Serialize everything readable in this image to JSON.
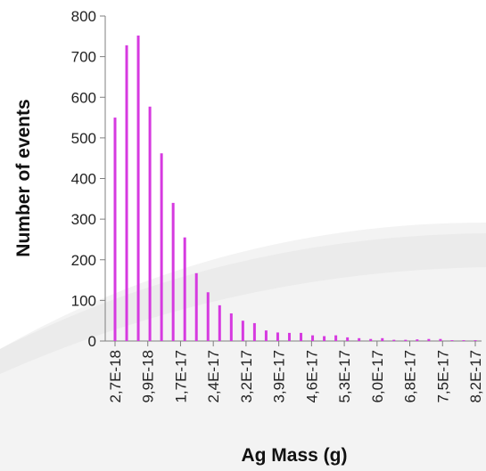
{
  "chart_data": {
    "type": "bar",
    "title": "",
    "xlabel": "Ag Mass (g)",
    "ylabel": "Number of events",
    "ylim": [
      0,
      800
    ],
    "yticks": [
      0,
      100,
      200,
      300,
      400,
      500,
      600,
      700,
      800
    ],
    "xtick_labels": [
      "2,7E-18",
      "9,9E-18",
      "1,7E-17",
      "2,4E-17",
      "3,2E-17",
      "3,9E-17",
      "4,6E-17",
      "5,3E-17",
      "6,0E-17",
      "6,8E-17",
      "7,5E-17",
      "8,2E-17"
    ],
    "bar_color": "#d63ae0",
    "grid": false,
    "legend": "none",
    "values": [
      550,
      728,
      752,
      577,
      462,
      340,
      255,
      167,
      120,
      88,
      68,
      50,
      44,
      26,
      21,
      20,
      20,
      14,
      12,
      14,
      9,
      7,
      5,
      7,
      3,
      3,
      4,
      5,
      5,
      2,
      2,
      2
    ]
  }
}
